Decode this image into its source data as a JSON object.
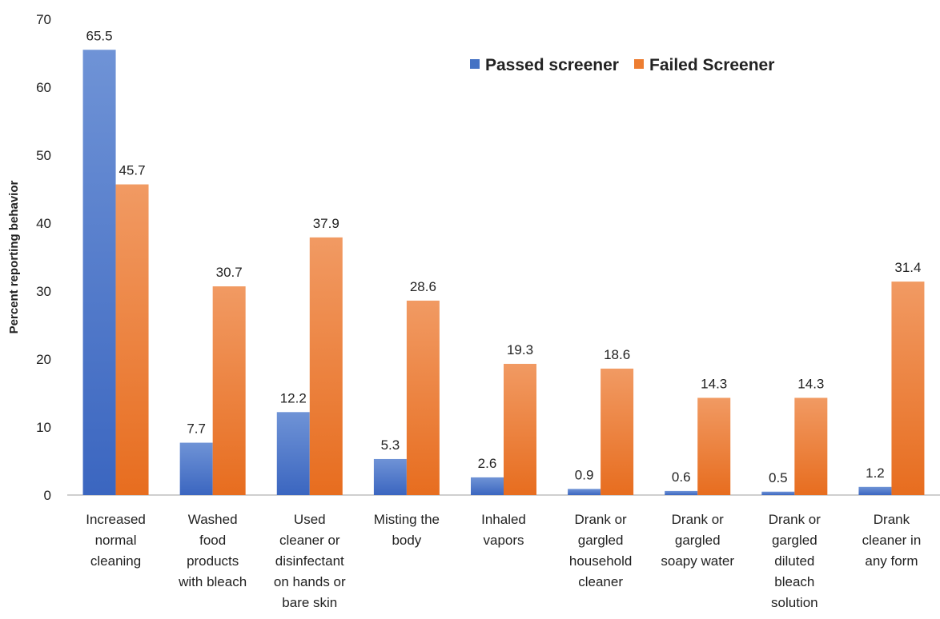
{
  "chart_data": {
    "type": "bar",
    "title": "",
    "xlabel": "",
    "ylabel": "Percent reporting behavior",
    "ylim": [
      0,
      70
    ],
    "yticks": [
      0,
      10,
      20,
      30,
      40,
      50,
      60,
      70
    ],
    "grid": false,
    "legend_position": "top-right",
    "categories": [
      [
        "Increased",
        "normal",
        "cleaning"
      ],
      [
        "Washed",
        "food",
        "products",
        "with bleach"
      ],
      [
        "Used",
        "cleaner or",
        "disinfectant",
        "on hands or",
        "bare skin"
      ],
      [
        "Misting the",
        "body"
      ],
      [
        "Inhaled",
        "vapors"
      ],
      [
        "Drank or",
        "gargled",
        "household",
        "cleaner"
      ],
      [
        "Drank or",
        "gargled",
        "soapy water"
      ],
      [
        "Drank or",
        "gargled",
        "diluted",
        "bleach",
        "solution"
      ],
      [
        "Drank",
        "cleaner in",
        "any form"
      ]
    ],
    "series": [
      {
        "name": "Passed screener",
        "color": "#4472C4",
        "values": [
          65.5,
          7.7,
          12.2,
          5.3,
          2.6,
          0.9,
          0.6,
          0.5,
          1.2
        ]
      },
      {
        "name": "Failed Screener",
        "color": "#ED7D31",
        "values": [
          45.7,
          30.7,
          37.9,
          28.6,
          19.3,
          18.6,
          14.3,
          14.3,
          31.4
        ]
      }
    ]
  }
}
